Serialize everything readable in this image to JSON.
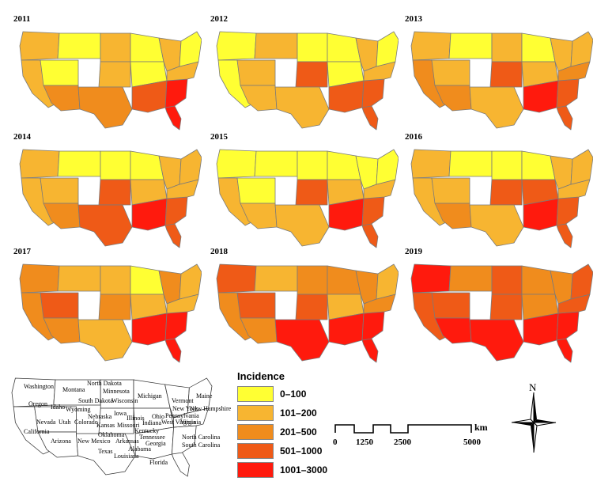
{
  "colors": {
    "c1": "#ffff33",
    "c2": "#f7b531",
    "c3": "#f08c1d",
    "c4": "#ef5a17",
    "c5": "#ff1a0d"
  },
  "panels": [
    {
      "year": "2011",
      "fills": [
        "c2",
        "c1",
        "c2",
        "c1",
        "c2",
        "c2",
        "c3",
        "c3",
        "c1",
        "c1",
        "c2",
        "c4",
        "c5",
        "c2",
        "c1"
      ]
    },
    {
      "year": "2012",
      "fills": [
        "c1",
        "c2",
        "c1",
        "c2",
        "c1",
        "c4",
        "c2",
        "c2",
        "c1",
        "c1",
        "c2",
        "c4",
        "c4",
        "c2",
        "c1"
      ]
    },
    {
      "year": "2013",
      "fills": [
        "c2",
        "c1",
        "c3",
        "c2",
        "c2",
        "c4",
        "c3",
        "c2",
        "c1",
        "c2",
        "c2",
        "c5",
        "c4",
        "c3",
        "c2"
      ]
    },
    {
      "year": "2014",
      "fills": [
        "c2",
        "c1",
        "c2",
        "c2",
        "c1",
        "c4",
        "c3",
        "c4",
        "c1",
        "c2",
        "c2",
        "c5",
        "c4",
        "c2",
        "c2"
      ]
    },
    {
      "year": "2015",
      "fills": [
        "c1",
        "c1",
        "c2",
        "c1",
        "c1",
        "c4",
        "c2",
        "c2",
        "c1",
        "c2",
        "c1",
        "c5",
        "c4",
        "c2",
        "c1"
      ]
    },
    {
      "year": "2016",
      "fills": [
        "c2",
        "c1",
        "c2",
        "c2",
        "c1",
        "c4",
        "c3",
        "c2",
        "c1",
        "c4",
        "c2",
        "c5",
        "c4",
        "c2",
        "c2"
      ]
    },
    {
      "year": "2017",
      "fills": [
        "c3",
        "c2",
        "c3",
        "c4",
        "c2",
        "c3",
        "c3",
        "c2",
        "c1",
        "c2",
        "c3",
        "c5",
        "c5",
        "c2",
        "c2"
      ]
    },
    {
      "year": "2018",
      "fills": [
        "c4",
        "c2",
        "c3",
        "c4",
        "c3",
        "c4",
        "c3",
        "c5",
        "c3",
        "c2",
        "c3",
        "c5",
        "c5",
        "c3",
        "c2"
      ]
    },
    {
      "year": "2019",
      "fills": [
        "c5",
        "c3",
        "c4",
        "c4",
        "c4",
        "c4",
        "c5",
        "c5",
        "c3",
        "c3",
        "c3",
        "c5",
        "c5",
        "c4",
        "c4"
      ]
    }
  ],
  "reference_map": {
    "states": [
      "Washington",
      "Montana",
      "North Dakota",
      "Minnesota",
      "Oregon",
      "Idaho",
      "South Dakota",
      "Wisconsin",
      "Michigan",
      "Vermont",
      "Maine",
      "Wyoming",
      "New York",
      "New Hampshire",
      "Nebraska",
      "Iowa",
      "Pennsylvania",
      "Nevada",
      "Utah",
      "Colorado",
      "Kansas",
      "Missouri",
      "Illinois",
      "Indiana",
      "Ohio",
      "West Virginia",
      "Virginia",
      "California",
      "Kentucky",
      "Tennessee",
      "North Carolina",
      "Arizona",
      "New Mexico",
      "Oklahoma",
      "Arkansas",
      "South Carolina",
      "Georgia",
      "Texas",
      "Louisiana",
      "Alabama",
      "Florida"
    ]
  },
  "legend": {
    "title": "Incidence",
    "items": [
      {
        "label": "0–100",
        "color": "c1"
      },
      {
        "label": "101–200",
        "color": "c2"
      },
      {
        "label": "201–500",
        "color": "c3"
      },
      {
        "label": "501–1000",
        "color": "c4"
      },
      {
        "label": "1001–3000",
        "color": "c5"
      }
    ]
  },
  "scale_bar": {
    "unit": "km",
    "ticks": [
      "0",
      "1250",
      "2500",
      "5000"
    ]
  },
  "compass": {
    "label": "N"
  }
}
